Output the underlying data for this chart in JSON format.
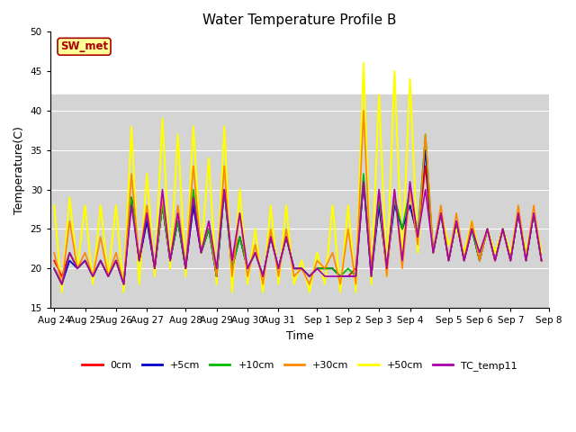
{
  "title": "Water Temperature Profile B",
  "xlabel": "Time",
  "ylabel": "Temperature(C)",
  "ylim": [
    15,
    50
  ],
  "yticks": [
    15,
    20,
    25,
    30,
    35,
    40,
    45,
    50
  ],
  "series_labels": [
    "0cm",
    "+5cm",
    "+10cm",
    "+30cm",
    "+50cm",
    "TC_temp11"
  ],
  "series_colors": [
    "#ff0000",
    "#0000cc",
    "#00bb00",
    "#ff8800",
    "#ffff00",
    "#aa00aa"
  ],
  "annotation_text": "SW_met",
  "annotation_bg": "#ffff99",
  "annotation_border": "#aa0000",
  "annotation_text_color": "#aa0000",
  "shaded_region_white": [
    42,
    50
  ],
  "shaded_region_grey": [
    15,
    42
  ],
  "days": [
    "Aug 24",
    "Aug 25",
    "Aug 26",
    "Aug 27",
    "Aug 28",
    "Aug 29",
    "Aug 30",
    "Aug 31",
    "Sep 1",
    "Sep 2",
    "Sep 3",
    "Sep 4",
    "Sep 5",
    "Sep 6",
    "Sep 7",
    "Sep 8"
  ],
  "background_color": "#ffffff",
  "plot_bg_color": "#d8d8d8",
  "data_0cm": [
    21,
    19,
    22,
    20,
    21,
    19,
    21,
    19,
    21,
    18,
    29,
    21,
    26,
    20,
    28,
    21,
    26,
    20,
    28,
    22,
    25,
    19,
    30,
    21,
    24,
    20,
    22,
    19,
    24,
    20,
    24,
    20,
    20,
    19,
    20,
    20,
    20,
    19,
    19,
    20,
    31,
    20,
    28,
    20,
    29,
    25,
    28,
    24,
    33,
    22,
    27,
    21,
    26,
    21,
    25,
    21,
    25,
    21,
    25,
    21,
    27,
    21,
    27,
    21
  ],
  "data_5cm": [
    20,
    18,
    21,
    20,
    21,
    19,
    21,
    19,
    21,
    18,
    29,
    21,
    26,
    20,
    28,
    21,
    26,
    20,
    28,
    22,
    25,
    19,
    30,
    20,
    24,
    20,
    22,
    19,
    24,
    20,
    24,
    20,
    20,
    19,
    20,
    20,
    20,
    19,
    19,
    19,
    31,
    19,
    28,
    20,
    28,
    25,
    28,
    24,
    35,
    22,
    27,
    21,
    26,
    21,
    25,
    21,
    25,
    21,
    25,
    21,
    27,
    21,
    27,
    21
  ],
  "data_10cm": [
    20,
    18,
    22,
    20,
    21,
    19,
    21,
    19,
    21,
    18,
    29,
    21,
    27,
    20,
    28,
    21,
    26,
    20,
    30,
    22,
    25,
    19,
    30,
    20,
    24,
    20,
    22,
    19,
    24,
    20,
    24,
    20,
    20,
    19,
    20,
    20,
    20,
    19,
    20,
    19,
    32,
    19,
    29,
    20,
    29,
    25,
    30,
    24,
    37,
    22,
    27,
    21,
    26,
    21,
    25,
    21,
    25,
    21,
    25,
    21,
    27,
    21,
    27,
    21
  ],
  "data_30cm": [
    22,
    18,
    26,
    20,
    22,
    19,
    24,
    19,
    22,
    18,
    32,
    21,
    28,
    20,
    29,
    21,
    28,
    20,
    33,
    22,
    26,
    19,
    33,
    19,
    27,
    19,
    23,
    18,
    25,
    19,
    25,
    19,
    20,
    18,
    21,
    20,
    22,
    18,
    25,
    18,
    40,
    19,
    30,
    19,
    30,
    20,
    30,
    23,
    37,
    22,
    28,
    21,
    27,
    21,
    26,
    21,
    25,
    21,
    25,
    21,
    28,
    21,
    28,
    21
  ],
  "data_50cm": [
    28,
    17,
    29,
    20,
    28,
    18,
    28,
    19,
    28,
    17,
    38,
    18,
    32,
    19,
    39,
    20,
    37,
    19,
    38,
    22,
    34,
    18,
    38,
    17,
    30,
    18,
    25,
    17,
    28,
    18,
    28,
    18,
    21,
    17,
    22,
    18,
    28,
    17,
    28,
    17,
    46,
    18,
    42,
    19,
    45,
    21,
    44,
    22,
    36,
    22,
    27,
    23,
    25,
    22,
    26,
    22,
    25,
    22,
    25,
    22,
    27,
    22,
    27,
    22
  ],
  "data_tc": [
    20,
    18,
    22,
    20,
    21,
    19,
    21,
    19,
    21,
    18,
    28,
    21,
    27,
    20,
    30,
    21,
    27,
    20,
    29,
    22,
    26,
    20,
    30,
    21,
    27,
    20,
    22,
    19,
    24,
    20,
    24,
    20,
    20,
    19,
    20,
    19,
    19,
    19,
    19,
    19,
    31,
    19,
    30,
    20,
    30,
    21,
    31,
    24,
    30,
    22,
    27,
    21,
    26,
    21,
    25,
    22,
    25,
    21,
    25,
    21,
    27,
    21,
    27,
    21
  ]
}
